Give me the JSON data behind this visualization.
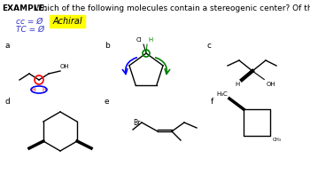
{
  "title_bold": "EXAMPLE:",
  "title_text": "  Which of the following molecules contain a stereogenic center? Of these, how many are chiral?",
  "title_fontsize": 6.5,
  "bg_color": "#ffffff",
  "note_cc": "cc = Ø",
  "note_tc": "TC = Ø",
  "note_achiral": "Achiral",
  "note_color": "#3333cc",
  "highlight_color": "#ffff00",
  "labels": [
    "a",
    "b",
    "c",
    "d",
    "e",
    "f"
  ]
}
